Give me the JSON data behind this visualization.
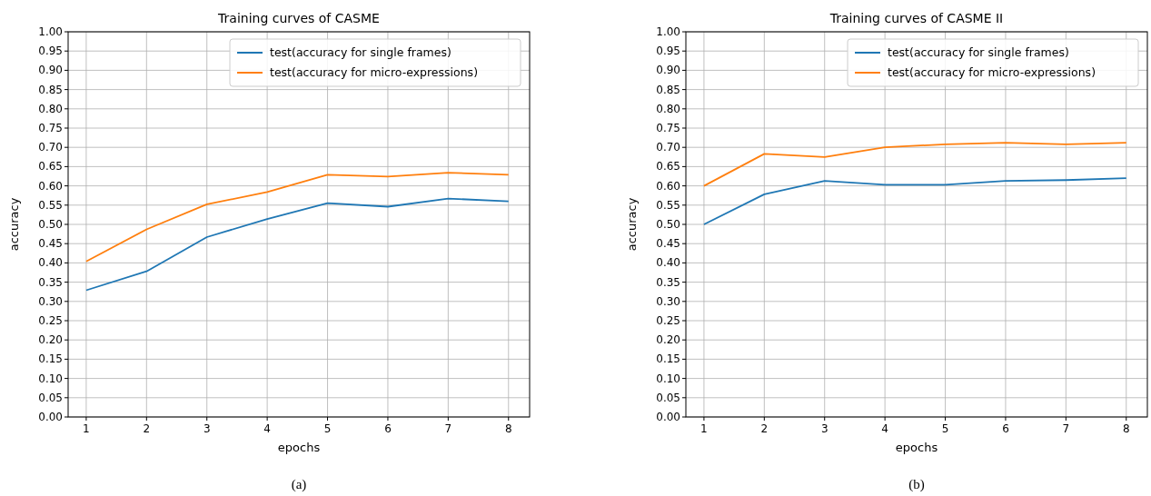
{
  "chart_data": [
    {
      "type": "line",
      "title": "Training curves of CASME",
      "xlabel": "epochs",
      "ylabel": "accuracy",
      "x": [
        1,
        2,
        3,
        4,
        5,
        6,
        7,
        8
      ],
      "xlim": [
        0.7,
        8.35
      ],
      "xticks": [
        1,
        2,
        3,
        4,
        5,
        6,
        7,
        8
      ],
      "ylim": [
        0,
        1
      ],
      "yticks": [
        {
          "value": 0,
          "label": "0.00"
        },
        {
          "value": 0.05,
          "label": "0.05"
        },
        {
          "value": 0.1,
          "label": "0.10"
        },
        {
          "value": 0.15,
          "label": "0.15"
        },
        {
          "value": 0.2,
          "label": "0.20"
        },
        {
          "value": 0.25,
          "label": "0.25"
        },
        {
          "value": 0.3,
          "label": "0.30"
        },
        {
          "value": 0.35,
          "label": "0.35"
        },
        {
          "value": 0.4,
          "label": "0.40"
        },
        {
          "value": 0.45,
          "label": "0.45"
        },
        {
          "value": 0.5,
          "label": "0.50"
        },
        {
          "value": 0.55,
          "label": "0.55"
        },
        {
          "value": 0.6,
          "label": "0.60"
        },
        {
          "value": 0.65,
          "label": "0.65"
        },
        {
          "value": 0.7,
          "label": "0.70"
        },
        {
          "value": 0.75,
          "label": "0.75"
        },
        {
          "value": 0.8,
          "label": "0.80"
        },
        {
          "value": 0.85,
          "label": "0.85"
        },
        {
          "value": 0.9,
          "label": "0.90"
        },
        {
          "value": 0.95,
          "label": "0.95"
        },
        {
          "value": 1,
          "label": "1.00"
        }
      ],
      "grid": true,
      "legend": "top right",
      "annotations": [
        "(a)"
      ],
      "series": [
        {
          "name": "test(accuracy for single frames)",
          "color": "#1f77b4",
          "values": [
            0.329,
            0.378,
            0.467,
            0.514,
            0.555,
            0.546,
            0.567,
            0.56
          ]
        },
        {
          "name": "test(accuracy for micro-expressions)",
          "color": "#ff7f0e",
          "values": [
            0.404,
            0.487,
            0.552,
            0.584,
            0.629,
            0.624,
            0.634,
            0.629
          ]
        }
      ]
    },
    {
      "type": "line",
      "title": "Training curves of CASME II",
      "xlabel": "epochs",
      "ylabel": "accuracy",
      "x": [
        1,
        2,
        3,
        4,
        5,
        6,
        7,
        8
      ],
      "xlim": [
        0.7,
        8.35
      ],
      "xticks": [
        1,
        2,
        3,
        4,
        5,
        6,
        7,
        8
      ],
      "ylim": [
        0,
        1
      ],
      "yticks": [
        {
          "value": 0,
          "label": "0.00"
        },
        {
          "value": 0.05,
          "label": "0.05"
        },
        {
          "value": 0.1,
          "label": "0.10"
        },
        {
          "value": 0.15,
          "label": "0.15"
        },
        {
          "value": 0.2,
          "label": "0.20"
        },
        {
          "value": 0.25,
          "label": "0.25"
        },
        {
          "value": 0.3,
          "label": "0.30"
        },
        {
          "value": 0.35,
          "label": "0.35"
        },
        {
          "value": 0.4,
          "label": "0.40"
        },
        {
          "value": 0.45,
          "label": "0.45"
        },
        {
          "value": 0.5,
          "label": "0.50"
        },
        {
          "value": 0.55,
          "label": "0.55"
        },
        {
          "value": 0.6,
          "label": "0.60"
        },
        {
          "value": 0.65,
          "label": "0.65"
        },
        {
          "value": 0.7,
          "label": "0.70"
        },
        {
          "value": 0.75,
          "label": "0.75"
        },
        {
          "value": 0.8,
          "label": "0.80"
        },
        {
          "value": 0.85,
          "label": "0.85"
        },
        {
          "value": 0.9,
          "label": "0.90"
        },
        {
          "value": 0.95,
          "label": "0.95"
        },
        {
          "value": 1,
          "label": "1.00"
        }
      ],
      "grid": true,
      "legend": "top right",
      "annotations": [
        "(b)"
      ],
      "series": [
        {
          "name": "test(accuracy for single frames)",
          "color": "#1f77b4",
          "values": [
            0.5,
            0.578,
            0.613,
            0.603,
            0.603,
            0.613,
            0.615,
            0.62
          ]
        },
        {
          "name": "test(accuracy for micro-expressions)",
          "color": "#ff7f0e",
          "values": [
            0.6,
            0.683,
            0.675,
            0.7,
            0.708,
            0.712,
            0.708,
            0.712
          ]
        }
      ]
    }
  ]
}
